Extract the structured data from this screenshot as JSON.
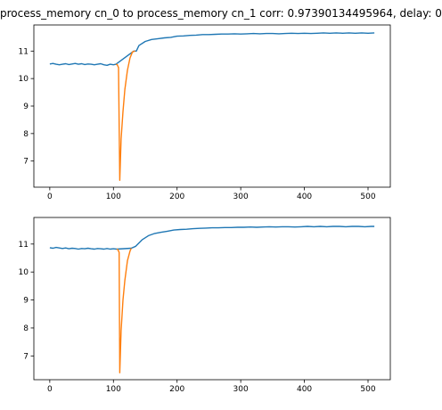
{
  "title": "process_memory cn_0 to process_memory cn_1  corr: 0.97390134495964, delay: 0",
  "colors": {
    "blue": "#1f77b4",
    "orange": "#ff7f0e"
  },
  "chart_data": [
    {
      "type": "line",
      "xlim": [
        -25,
        535
      ],
      "ylim": [
        6.05,
        11.95
      ],
      "xticks": [
        0,
        100,
        200,
        300,
        400,
        500
      ],
      "yticks": [
        7,
        8,
        9,
        10,
        11
      ],
      "grid": false,
      "series": [
        {
          "color": "#1f77b4",
          "points": [
            [
              0,
              10.53
            ],
            [
              5,
              10.55
            ],
            [
              10,
              10.52
            ],
            [
              15,
              10.5
            ],
            [
              20,
              10.52
            ],
            [
              25,
              10.54
            ],
            [
              30,
              10.51
            ],
            [
              35,
              10.53
            ],
            [
              40,
              10.55
            ],
            [
              45,
              10.52
            ],
            [
              50,
              10.54
            ],
            [
              55,
              10.51
            ],
            [
              60,
              10.53
            ],
            [
              65,
              10.52
            ],
            [
              70,
              10.5
            ],
            [
              75,
              10.52
            ],
            [
              80,
              10.54
            ],
            [
              85,
              10.5
            ],
            [
              90,
              10.48
            ],
            [
              95,
              10.52
            ],
            [
              100,
              10.5
            ],
            [
              104,
              10.52
            ],
            [
              132,
              11.0
            ],
            [
              136,
              11.0
            ],
            [
              140,
              11.2
            ],
            [
              150,
              11.35
            ],
            [
              160,
              11.42
            ],
            [
              170,
              11.45
            ],
            [
              180,
              11.48
            ],
            [
              190,
              11.5
            ],
            [
              200,
              11.54
            ],
            [
              210,
              11.55
            ],
            [
              220,
              11.57
            ],
            [
              230,
              11.58
            ],
            [
              240,
              11.6
            ],
            [
              250,
              11.6
            ],
            [
              260,
              11.61
            ],
            [
              270,
              11.62
            ],
            [
              280,
              11.62
            ],
            [
              290,
              11.63
            ],
            [
              300,
              11.62
            ],
            [
              310,
              11.63
            ],
            [
              320,
              11.64
            ],
            [
              330,
              11.63
            ],
            [
              340,
              11.64
            ],
            [
              350,
              11.64
            ],
            [
              360,
              11.63
            ],
            [
              370,
              11.64
            ],
            [
              380,
              11.65
            ],
            [
              390,
              11.64
            ],
            [
              400,
              11.65
            ],
            [
              410,
              11.64
            ],
            [
              420,
              11.65
            ],
            [
              430,
              11.66
            ],
            [
              440,
              11.65
            ],
            [
              450,
              11.66
            ],
            [
              460,
              11.65
            ],
            [
              470,
              11.66
            ],
            [
              480,
              11.65
            ],
            [
              490,
              11.66
            ],
            [
              500,
              11.65
            ],
            [
              510,
              11.66
            ]
          ]
        },
        {
          "color": "#ff7f0e",
          "points": [
            [
              104,
              10.52
            ],
            [
              106,
              10.5
            ],
            [
              108,
              10.4
            ],
            [
              110,
              6.3
            ],
            [
              112,
              7.8
            ],
            [
              115,
              8.8
            ],
            [
              118,
              9.6
            ],
            [
              122,
              10.3
            ],
            [
              126,
              10.75
            ],
            [
              130,
              10.97
            ],
            [
              134,
              11.0
            ]
          ]
        }
      ]
    },
    {
      "type": "line",
      "xlim": [
        -25,
        535
      ],
      "ylim": [
        6.15,
        11.95
      ],
      "xticks": [
        0,
        100,
        200,
        300,
        400,
        500
      ],
      "yticks": [
        7,
        8,
        9,
        10,
        11
      ],
      "grid": false,
      "series": [
        {
          "color": "#1f77b4",
          "points": [
            [
              0,
              10.87
            ],
            [
              5,
              10.85
            ],
            [
              10,
              10.88
            ],
            [
              15,
              10.86
            ],
            [
              20,
              10.84
            ],
            [
              25,
              10.86
            ],
            [
              30,
              10.83
            ],
            [
              35,
              10.85
            ],
            [
              40,
              10.84
            ],
            [
              45,
              10.82
            ],
            [
              50,
              10.84
            ],
            [
              55,
              10.83
            ],
            [
              60,
              10.85
            ],
            [
              65,
              10.83
            ],
            [
              70,
              10.82
            ],
            [
              75,
              10.84
            ],
            [
              80,
              10.83
            ],
            [
              85,
              10.82
            ],
            [
              90,
              10.84
            ],
            [
              95,
              10.82
            ],
            [
              100,
              10.83
            ],
            [
              105,
              10.82
            ],
            [
              128,
              10.85
            ],
            [
              135,
              10.92
            ],
            [
              145,
              11.15
            ],
            [
              155,
              11.3
            ],
            [
              165,
              11.38
            ],
            [
              175,
              11.42
            ],
            [
              185,
              11.46
            ],
            [
              195,
              11.5
            ],
            [
              205,
              11.52
            ],
            [
              215,
              11.53
            ],
            [
              225,
              11.55
            ],
            [
              235,
              11.56
            ],
            [
              245,
              11.57
            ],
            [
              255,
              11.58
            ],
            [
              265,
              11.58
            ],
            [
              275,
              11.59
            ],
            [
              285,
              11.59
            ],
            [
              295,
              11.6
            ],
            [
              305,
              11.6
            ],
            [
              315,
              11.61
            ],
            [
              325,
              11.6
            ],
            [
              335,
              11.61
            ],
            [
              345,
              11.62
            ],
            [
              355,
              11.61
            ],
            [
              365,
              11.62
            ],
            [
              375,
              11.62
            ],
            [
              385,
              11.61
            ],
            [
              395,
              11.62
            ],
            [
              405,
              11.63
            ],
            [
              415,
              11.62
            ],
            [
              425,
              11.63
            ],
            [
              435,
              11.62
            ],
            [
              445,
              11.63
            ],
            [
              455,
              11.63
            ],
            [
              465,
              11.62
            ],
            [
              475,
              11.63
            ],
            [
              485,
              11.63
            ],
            [
              495,
              11.62
            ],
            [
              505,
              11.63
            ],
            [
              510,
              11.63
            ]
          ]
        },
        {
          "color": "#ff7f0e",
          "points": [
            [
              105,
              10.82
            ],
            [
              107,
              10.8
            ],
            [
              109,
              10.7
            ],
            [
              110,
              6.4
            ],
            [
              112,
              7.9
            ],
            [
              115,
              9.0
            ],
            [
              118,
              9.7
            ],
            [
              122,
              10.4
            ],
            [
              126,
              10.75
            ],
            [
              128,
              10.85
            ]
          ]
        }
      ]
    }
  ]
}
